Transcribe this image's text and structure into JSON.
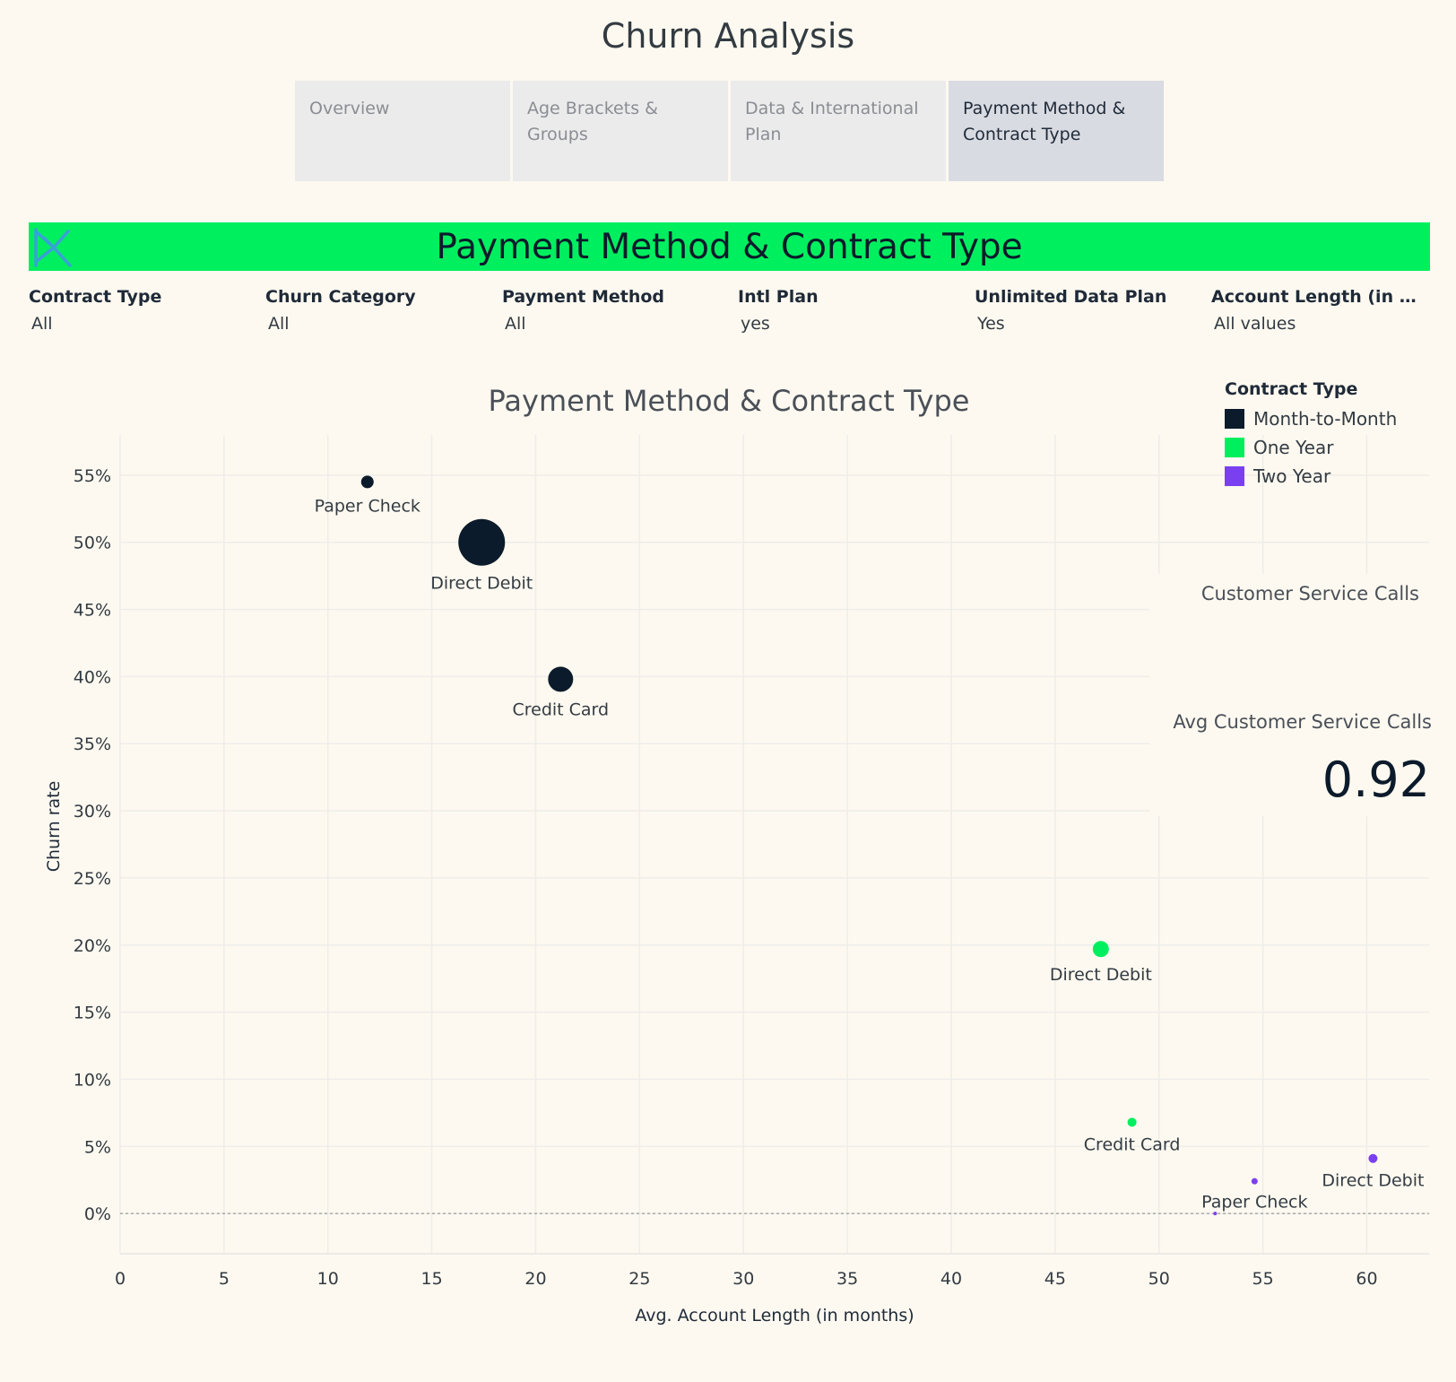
{
  "page": {
    "title": "Churn Analysis"
  },
  "tabs": [
    {
      "label": "Overview",
      "active": false
    },
    {
      "label": "Age Brackets & Groups",
      "active": false
    },
    {
      "label": "Data & International Plan",
      "active": false
    },
    {
      "label": "Payment Method & Contract Type",
      "active": true
    }
  ],
  "banner": {
    "title": "Payment Method & Contract Type"
  },
  "filters": [
    {
      "label": "Contract Type",
      "value": "All"
    },
    {
      "label": "Churn Category",
      "value": "All"
    },
    {
      "label": "Payment Method",
      "value": "All"
    },
    {
      "label": "Intl Plan",
      "value": "yes"
    },
    {
      "label": "Unlimited Data Plan",
      "value": "Yes"
    },
    {
      "label": "Account Length (in month..",
      "value": "All values"
    }
  ],
  "legend": {
    "title": "Contract Type",
    "items": [
      {
        "label": "Month-to-Month",
        "color": "#0c1b2b"
      },
      {
        "label": "One Year",
        "color": "#00ef5f"
      },
      {
        "label": "Two Year",
        "color": "#7b3ff2"
      }
    ]
  },
  "kpi": {
    "section_title": "Customer Service Calls",
    "label": "Avg Customer Service Calls",
    "value": "0.92"
  },
  "chart_data": {
    "type": "scatter",
    "title": "Payment Method & Contract Type",
    "xlabel": "Avg. Account Length (in months)",
    "ylabel": "Churn rate",
    "xlim": [
      0,
      63
    ],
    "ylim": [
      -0.03,
      0.58
    ],
    "x_ticks": [
      0,
      5,
      10,
      15,
      20,
      25,
      30,
      35,
      40,
      45,
      50,
      55,
      60
    ],
    "y_ticks": [
      0,
      0.05,
      0.1,
      0.15,
      0.2,
      0.25,
      0.3,
      0.35,
      0.4,
      0.45,
      0.5,
      0.55
    ],
    "y_tick_labels": [
      "0%",
      "5%",
      "10%",
      "15%",
      "20%",
      "25%",
      "30%",
      "35%",
      "40%",
      "45%",
      "50%",
      "55%"
    ],
    "x_tick_labels": [
      "0",
      "5",
      "10",
      "15",
      "20",
      "25",
      "30",
      "35",
      "40",
      "45",
      "50",
      "55",
      "60"
    ],
    "grid": true,
    "legend_position": "top-right",
    "series": [
      {
        "name": "Month-to-Month",
        "color": "#0c1b2b",
        "points": [
          {
            "label": "Paper Check",
            "x": 11.9,
            "y": 0.545,
            "size": 7
          },
          {
            "label": "Direct Debit",
            "x": 17.4,
            "y": 0.5,
            "size": 26
          },
          {
            "label": "Credit Card",
            "x": 21.2,
            "y": 0.398,
            "size": 14
          }
        ]
      },
      {
        "name": "One Year",
        "color": "#00ef5f",
        "points": [
          {
            "label": "Direct Debit",
            "x": 47.2,
            "y": 0.197,
            "size": 9
          },
          {
            "label": "Credit Card",
            "x": 48.7,
            "y": 0.068,
            "size": 5
          }
        ]
      },
      {
        "name": "Two Year",
        "color": "#7b3ff2",
        "points": [
          {
            "label": "Direct Debit",
            "x": 60.3,
            "y": 0.041,
            "size": 5
          },
          {
            "label": "Paper Check",
            "x": 54.6,
            "y": 0.024,
            "size": 3.5
          },
          {
            "label": "",
            "x": 52.7,
            "y": 0.0,
            "size": 2
          }
        ]
      }
    ]
  }
}
